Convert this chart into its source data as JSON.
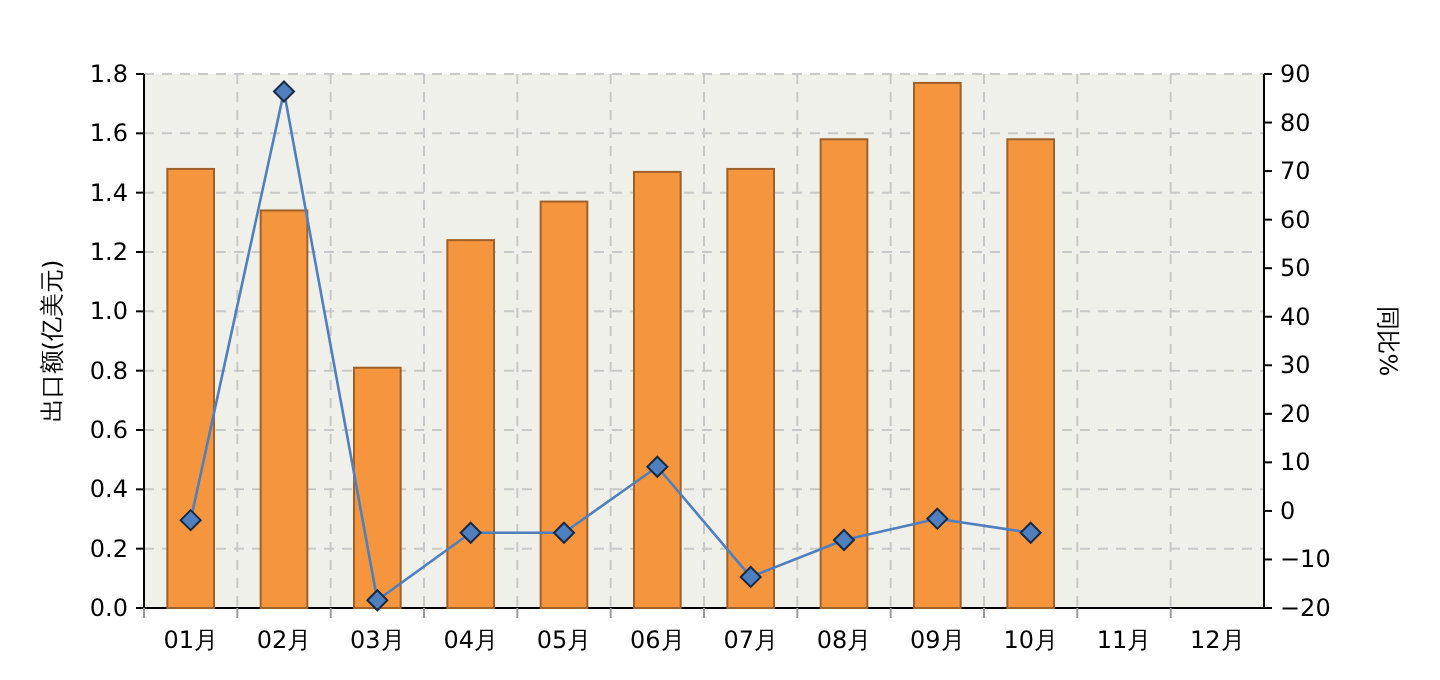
{
  "chart_data": {
    "type": "bar",
    "ylabel": "出口额(亿美元)",
    "y2label": "同比%",
    "categories": [
      "01月",
      "02月",
      "03月",
      "04月",
      "05月",
      "06月",
      "07月",
      "08月",
      "09月",
      "10月",
      "11月",
      "12月"
    ],
    "series": [
      {
        "color": "#f5963f",
        "values": [
          1.48,
          1.34,
          0.81,
          1.24,
          1.37,
          1.47,
          1.48,
          1.58,
          1.77,
          1.58,
          null,
          null
        ]
      },
      {
        "type": "line",
        "axis": "y2",
        "color": "#4f7fbf",
        "values": [
          -1.9,
          86.4,
          -18.4,
          -4.5,
          -4.5,
          9.1,
          -13.6,
          -6,
          -1.6,
          -4.5,
          null,
          null
        ]
      }
    ],
    "ylim": [
      0,
      1.8
    ],
    "yticks": [
      {
        "value": 0,
        "label": "0.0"
      },
      0.2,
      0.4,
      0.6,
      0.8,
      {
        "value": 1,
        "label": "1.0"
      },
      1.2,
      1.4,
      1.6,
      1.8
    ],
    "y2lim": [
      -20,
      90
    ],
    "y2ticks": [
      -20,
      -10,
      0,
      10,
      20,
      30,
      40,
      50,
      60,
      70,
      80,
      90
    ],
    "grid": true,
    "marker": "diamond",
    "line_style": "solid"
  }
}
